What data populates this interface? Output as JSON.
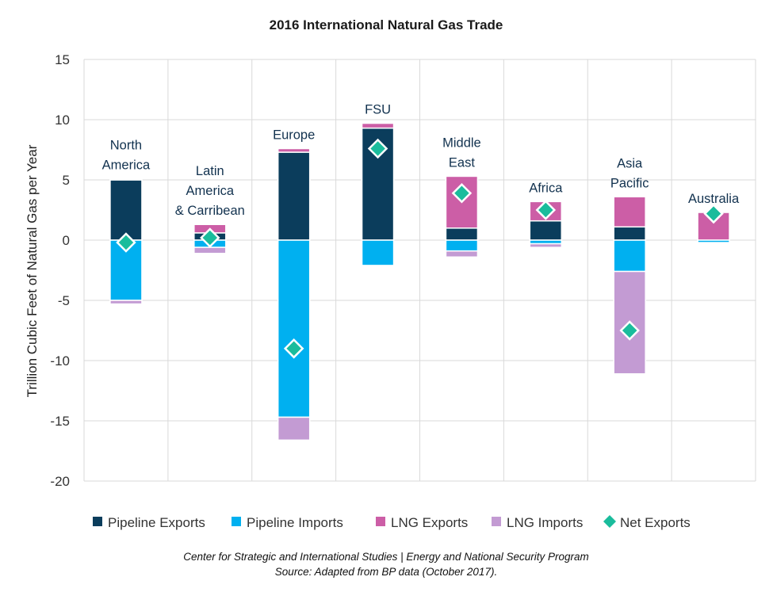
{
  "title": "2016 International Natural Gas Trade",
  "footer": {
    "line1": "Center for Strategic and International Studies | Energy and National Security Program",
    "line2": "Source: Adapted from BP data (October 2017)."
  },
  "colors": {
    "pipeline_exports": "#0b3d5c",
    "pipeline_imports": "#00b0f0",
    "lng_exports": "#cc5ea6",
    "lng_imports": "#c39bd3",
    "net_exports": "#1abc9c",
    "grid": "#d9d9d9"
  },
  "chart_data": {
    "type": "bar",
    "stacked": true,
    "title": "2016 International Natural Gas Trade",
    "ylabel": "Trillion Cubic Feet of Natural Gas per Year",
    "xlabel": "",
    "ylim": [
      -20,
      15
    ],
    "yticks": [
      15,
      10,
      5,
      0,
      -5,
      -10,
      -15,
      -20
    ],
    "grid": true,
    "legend_position": "bottom",
    "categories": [
      "North America",
      "Latin America & Carribean",
      "Europe",
      "FSU",
      "Middle East",
      "Africa",
      "Asia Pacific",
      "Australia"
    ],
    "category_label_lines": [
      [
        "North",
        "America"
      ],
      [
        "Latin",
        "America",
        "& Carribean"
      ],
      [
        "Europe"
      ],
      [
        "FSU"
      ],
      [
        "Middle",
        "East"
      ],
      [
        "Africa"
      ],
      [
        "Asia",
        "Pacific"
      ],
      [
        "Australia"
      ]
    ],
    "series": [
      {
        "name": "Pipeline Exports",
        "key": "pipeline_exports",
        "values": [
          5.0,
          0.6,
          7.3,
          9.3,
          1.0,
          1.6,
          1.1,
          0.0
        ]
      },
      {
        "name": "LNG Exports",
        "key": "lng_exports",
        "values": [
          0.1,
          0.7,
          0.3,
          0.4,
          4.3,
          1.6,
          2.5,
          2.3
        ]
      },
      {
        "name": "Pipeline Imports",
        "key": "pipeline_imports",
        "values": [
          -5.0,
          -0.6,
          -14.7,
          -2.1,
          -0.9,
          -0.3,
          -2.6,
          -0.2
        ]
      },
      {
        "name": "LNG Imports",
        "key": "lng_imports",
        "values": [
          -0.3,
          -0.5,
          -1.9,
          0.0,
          -0.5,
          -0.3,
          -8.5,
          0.0
        ]
      },
      {
        "name": "Net Exports",
        "key": "net_exports",
        "type": "marker",
        "values": [
          -0.2,
          0.2,
          -9.0,
          7.6,
          3.9,
          2.5,
          -7.5,
          2.2
        ]
      }
    ],
    "legend_order": [
      "Pipeline Exports",
      "Pipeline Imports",
      "LNG Exports",
      "LNG Imports",
      "Net Exports"
    ]
  }
}
